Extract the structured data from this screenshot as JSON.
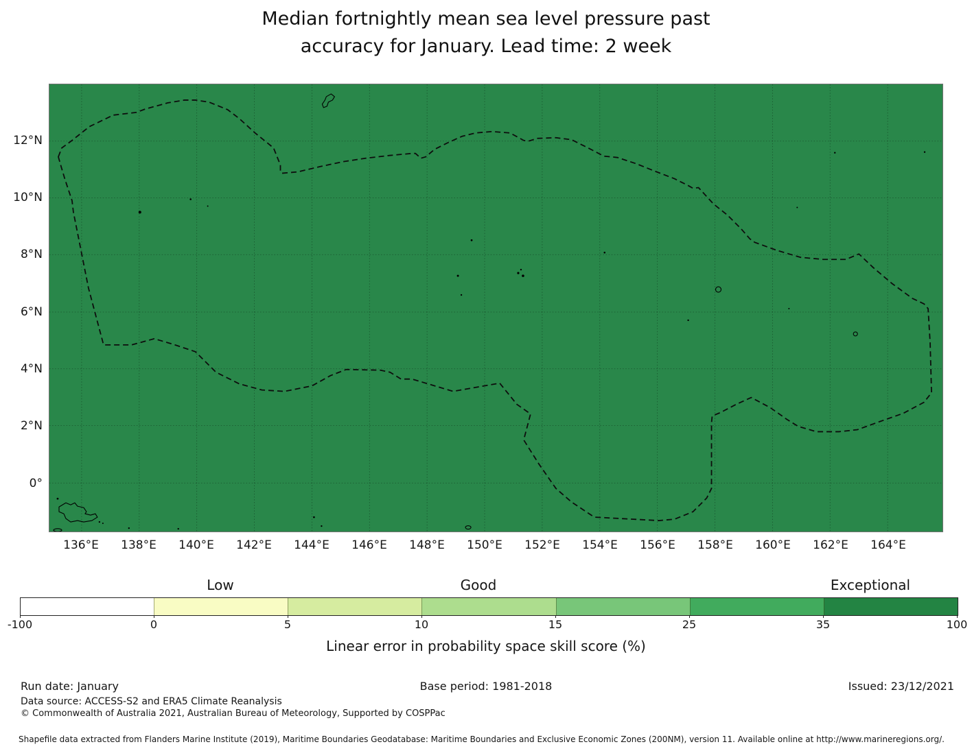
{
  "title": {
    "line1": "Median fortnightly mean sea level pressure past",
    "line2": "accuracy for January. Lead time: 2 week"
  },
  "map": {
    "fill_color": "#29874a",
    "boundary": "Federated States of Micronesia EEZ shown as dashed outline",
    "x_tick_labels": [
      "136°E",
      "138°E",
      "140°E",
      "142°E",
      "144°E",
      "146°E",
      "148°E",
      "150°E",
      "152°E",
      "154°E",
      "156°E",
      "158°E",
      "160°E",
      "162°E",
      "164°E"
    ],
    "y_tick_labels": [
      "12°N",
      "10°N",
      "8°N",
      "6°N",
      "4°N",
      "2°N",
      "0°"
    ]
  },
  "colorbar": {
    "category_labels": [
      "Low",
      "Good",
      "Exceptional"
    ],
    "tick_labels": [
      "-100",
      "0",
      "5",
      "10",
      "15",
      "25",
      "35",
      "100"
    ],
    "segment_colors": [
      "#ffffff",
      "#f9fcc4",
      "#d6eca0",
      "#addd8e",
      "#78c679",
      "#41ab5d",
      "#238443"
    ],
    "axis_label": "Linear error in probability space skill score (%)"
  },
  "footer": {
    "run_date": "Run date: January",
    "base_period": "Base period: 1981-2018",
    "issued": "Issued: 23/12/2021",
    "data_source": "Data source: ACCESS-S2 and ERA5 Climate Reanalysis",
    "copyright": "© Commonwealth of Australia 2021, Australian Bureau of Meteorology, Supported by COSPPac",
    "shapefile_note": "Shapefile data extracted from Flanders Marine Institute (2019), Maritime Boundaries Geodatabase: Maritime Boundaries and Exclusive Economic Zones (200NM), version 11. Available online at http://www.marineregions.org/."
  },
  "chart_data": {
    "type": "heatmap",
    "title": "Median fortnightly mean sea level pressure past accuracy for January. Lead time: 2 week",
    "variable": "Linear error in probability space skill score (%)",
    "month": "January",
    "lead_time": "2 week",
    "x": {
      "label": "Longitude",
      "tick_labels": [
        "136°E",
        "138°E",
        "140°E",
        "142°E",
        "144°E",
        "146°E",
        "148°E",
        "150°E",
        "152°E",
        "154°E",
        "156°E",
        "158°E",
        "160°E",
        "162°E",
        "164°E"
      ],
      "approx_range": [
        "134.9°E",
        "165.9°E"
      ]
    },
    "y": {
      "label": "Latitude",
      "tick_labels": [
        "12°N",
        "10°N",
        "8°N",
        "6°N",
        "4°N",
        "2°N",
        "0°"
      ],
      "approx_range": [
        "1.7°S",
        "14°N"
      ]
    },
    "color_bins": {
      "edges": [
        -100,
        0,
        5,
        10,
        15,
        25,
        35,
        100
      ],
      "colors": [
        "#ffffff",
        "#f9fcc4",
        "#d6eca0",
        "#addd8e",
        "#78c679",
        "#41ab5d",
        "#238443"
      ],
      "category_label_positions": [
        {
          "label": "Low",
          "over_interval": [
            0,
            5
          ]
        },
        {
          "label": "Good",
          "over_interval": [
            10,
            15
          ]
        },
        {
          "label": "Exceptional",
          "over_interval": [
            35,
            100
          ]
        }
      ],
      "legend_position": "horizontal colorbar below map"
    },
    "values": "Uniform dark-green fill over the entire mapped domain: skill score falls in the top 35–100 (Exceptional) bin everywhere shown",
    "overlays": "Dashed EEZ boundary polygon; small island outlines/dots (Guam, Yap, Ulithi, Chuuk, Pohnpei, Kosrae, Manus group); grid every 2°",
    "grid": true
  }
}
